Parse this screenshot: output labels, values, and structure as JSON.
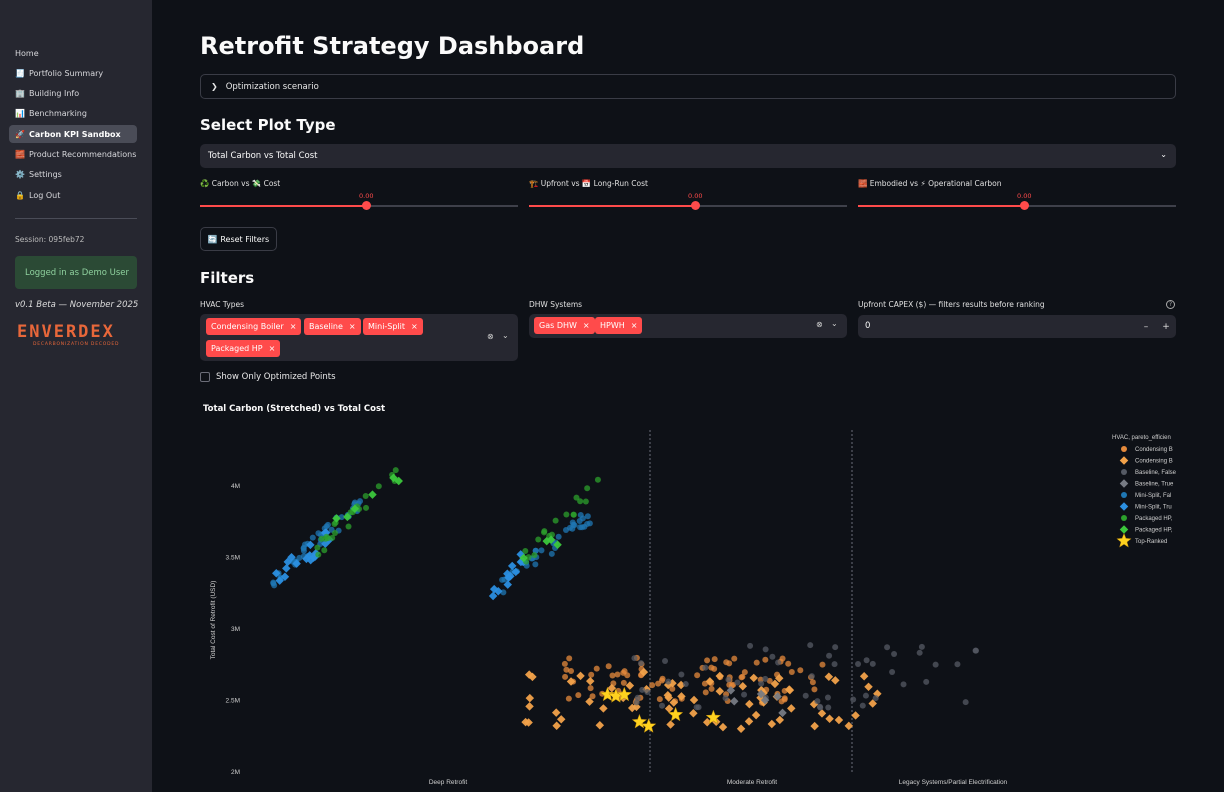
{
  "sidebar": {
    "items": [
      {
        "label": "Home",
        "icon": ""
      },
      {
        "label": "Portfolio Summary",
        "icon": "🧾"
      },
      {
        "label": "Building Info",
        "icon": "🏢"
      },
      {
        "label": "Benchmarking",
        "icon": "📊"
      },
      {
        "label": "Carbon KPI Sandbox",
        "icon": "🚀"
      },
      {
        "label": "Product Recommendations",
        "icon": "🧱"
      },
      {
        "label": "Settings",
        "icon": "⚙️"
      },
      {
        "label": "Log Out",
        "icon": "🔒"
      }
    ],
    "active_index": 4,
    "session": "Session: 095feb72",
    "logged_in": "Logged in as Demo User",
    "version": "v0.1 Beta — November 2025",
    "logo_text": "ENVERDEX",
    "logo_tagline": "DECARBONIZATION DECODED"
  },
  "main": {
    "title": "Retrofit Strategy Dashboard",
    "expander_label": "Optimization scenario",
    "plot_type_heading": "Select Plot Type",
    "plot_type_selected": "Total Carbon vs Total Cost",
    "sliders": [
      {
        "label": "♻️ Carbon vs 💸 Cost",
        "value": "0.00",
        "fraction": 0.52
      },
      {
        "label": "🏗️ Upfront vs 📅 Long-Run Cost",
        "value": "0.00",
        "fraction": 0.52
      },
      {
        "label": "🧱 Embodied vs ⚡ Operational Carbon",
        "value": "0.00",
        "fraction": 0.52
      }
    ],
    "reset_button": "🔄 Reset Filters",
    "filters_heading": "Filters",
    "hvac_label": "HVAC Types",
    "hvac_tags": [
      "Condensing Boiler",
      "Baseline",
      "Mini-Split",
      "Packaged HP"
    ],
    "dhw_label": "DHW Systems",
    "dhw_tags": [
      "Gas DHW",
      "HPWH"
    ],
    "capex_label": "Upfront CAPEX ($) — filters results before ranking",
    "capex_value": "0",
    "checkbox_label": "Show Only Optimized Points"
  },
  "chart_data": {
    "type": "scatter",
    "title": "Total Carbon (Stretched) vs Total Cost",
    "ylabel": "Total Cost of Retrofit (USD)",
    "yticks": [
      "2M",
      "2.5M",
      "3M",
      "3.5M",
      "4M"
    ],
    "ylim": [
      2000000,
      4400000
    ],
    "zone_labels": [
      "Deep Retrofit",
      "Moderate Retrofit",
      "Legacy Systems/Partial Electrification"
    ],
    "legend_title": "HVAC, pareto_efficien",
    "legend_position": "top-right",
    "legend": [
      {
        "label": "Condensing B",
        "color": "#e58a3c",
        "marker": "circle"
      },
      {
        "label": "Condensing B",
        "color": "#f2a24a",
        "marker": "diamond"
      },
      {
        "label": "Baseline, False",
        "color": "#555a64",
        "marker": "circle"
      },
      {
        "label": "Baseline, True",
        "color": "#777b84",
        "marker": "diamond"
      },
      {
        "label": "Mini-Split, Fal",
        "color": "#1f77b4",
        "marker": "circle"
      },
      {
        "label": "Mini-Split, Tru",
        "color": "#2b8fe0",
        "marker": "diamond"
      },
      {
        "label": "Packaged HP,",
        "color": "#2ca02c",
        "marker": "circle"
      },
      {
        "label": "Packaged HP,",
        "color": "#3cc83c",
        "marker": "diamond"
      },
      {
        "label": "Top-Ranked",
        "color": "#ffd21f",
        "marker": "star"
      }
    ],
    "series_clusters": [
      {
        "series": 4,
        "x": [
          0.03,
          0.14
        ],
        "y": [
          3350000,
          4000000
        ],
        "n": 40
      },
      {
        "series": 5,
        "x": [
          0.03,
          0.1
        ],
        "y": [
          3350000,
          3700000
        ],
        "n": 18
      },
      {
        "series": 6,
        "x": [
          0.08,
          0.18
        ],
        "y": [
          3550000,
          4200000
        ],
        "n": 22
      },
      {
        "series": 7,
        "x": [
          0.09,
          0.18
        ],
        "y": [
          3750000,
          4100000
        ],
        "n": 6
      },
      {
        "series": 4,
        "x": [
          0.29,
          0.41
        ],
        "y": [
          3250000,
          3900000
        ],
        "n": 35
      },
      {
        "series": 5,
        "x": [
          0.29,
          0.33
        ],
        "y": [
          3200000,
          3600000
        ],
        "n": 14
      },
      {
        "series": 6,
        "x": [
          0.33,
          0.42
        ],
        "y": [
          3500000,
          4150000
        ],
        "n": 18
      },
      {
        "series": 7,
        "x": [
          0.32,
          0.37
        ],
        "y": [
          3450000,
          3650000
        ],
        "n": 4
      },
      {
        "series": 0,
        "x": [
          0.37,
          0.69
        ],
        "y": [
          2480000,
          2800000
        ],
        "n": 85
      },
      {
        "series": 1,
        "x": [
          0.33,
          0.75
        ],
        "y": [
          2300000,
          2700000
        ],
        "n": 70
      },
      {
        "series": 2,
        "x": [
          0.45,
          0.88
        ],
        "y": [
          2450000,
          2900000
        ],
        "n": 55
      },
      {
        "series": 3,
        "x": [
          0.5,
          0.72
        ],
        "y": [
          2400000,
          2600000
        ],
        "n": 6
      }
    ],
    "top_ranked": [
      {
        "x": 0.428,
        "y": 2540000
      },
      {
        "x": 0.438,
        "y": 2530000
      },
      {
        "x": 0.448,
        "y": 2540000
      },
      {
        "x": 0.466,
        "y": 2350000
      },
      {
        "x": 0.477,
        "y": 2320000
      },
      {
        "x": 0.509,
        "y": 2400000
      },
      {
        "x": 0.554,
        "y": 2380000
      }
    ]
  }
}
